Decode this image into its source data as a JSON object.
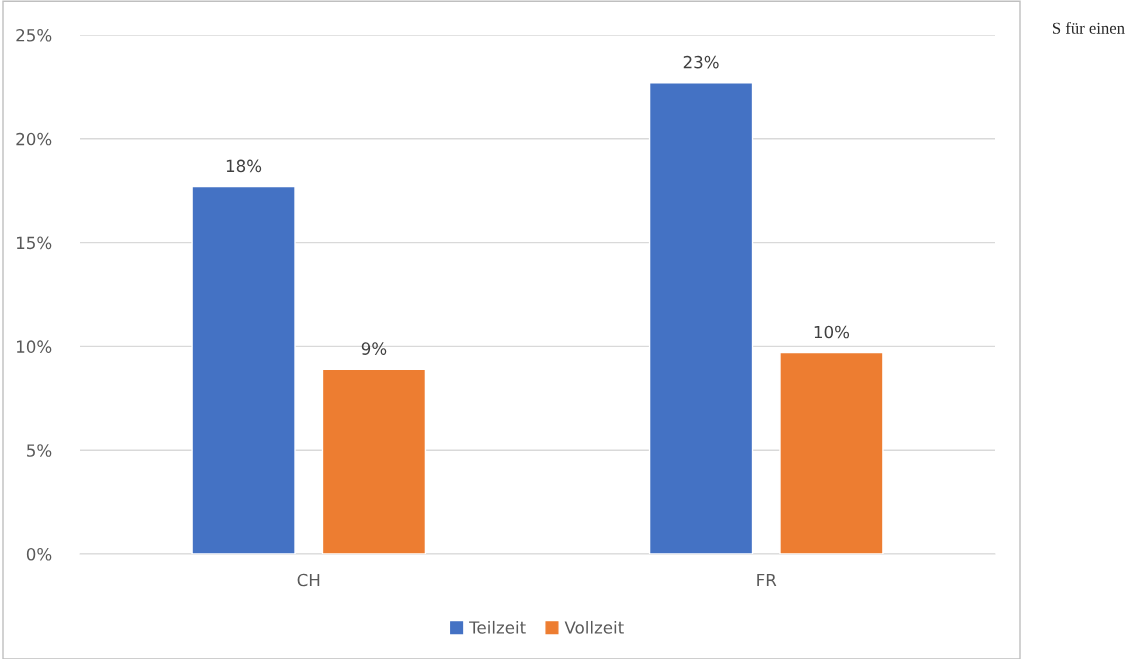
{
  "chart_data": {
    "type": "bar",
    "categories": [
      "CH",
      "FR"
    ],
    "series": [
      {
        "name": "Teilzeit",
        "color": "#4472c4",
        "values": [
          17.7,
          22.7
        ],
        "value_labels": [
          "18%",
          "23%"
        ]
      },
      {
        "name": "Vollzeit",
        "color": "#ed7d31",
        "values": [
          8.9,
          9.7
        ],
        "value_labels": [
          "9%",
          "10%"
        ]
      }
    ],
    "ylim": [
      0,
      25
    ],
    "yticks": [
      {
        "value": 0,
        "label": "0%"
      },
      {
        "value": 5,
        "label": "5%"
      },
      {
        "value": 10,
        "label": "10%"
      },
      {
        "value": 15,
        "label": "15%"
      },
      {
        "value": 20,
        "label": "20%"
      },
      {
        "value": 25,
        "label": "25%"
      }
    ],
    "grid": "y",
    "legend": "bottom",
    "annotations": [
      "S für einen"
    ]
  }
}
